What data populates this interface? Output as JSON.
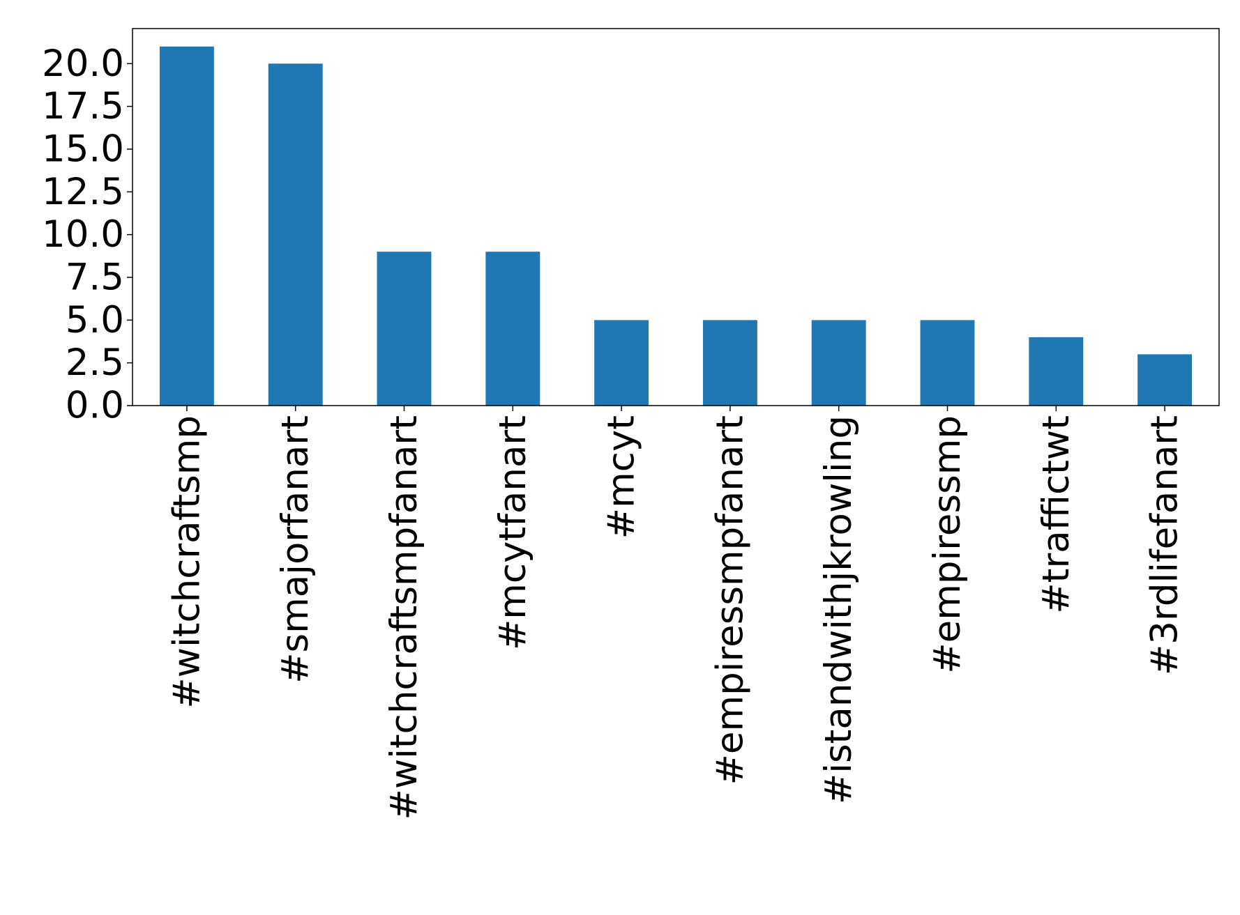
{
  "chart_data": {
    "type": "bar",
    "title": "",
    "xlabel": "",
    "ylabel": "",
    "categories": [
      "#witchcraftsmp",
      "#smajorfanart",
      "#witchcraftsmpfanart",
      "#mcytfanart",
      "#mcyt",
      "#empiressmpfanart",
      "#istandwithjkrowling",
      "#empiressmp",
      "#traffictwt",
      "#3rdlifefanart"
    ],
    "values": [
      21,
      20,
      9,
      9,
      5,
      5,
      5,
      5,
      4,
      3
    ],
    "yticks": [
      "0.0",
      "2.5",
      "5.0",
      "7.5",
      "10.0",
      "12.5",
      "15.0",
      "17.5",
      "20.0"
    ],
    "ytick_values": [
      0,
      2.5,
      5,
      7.5,
      10,
      12.5,
      15,
      17.5,
      20
    ],
    "ylim": [
      0,
      22.05
    ],
    "grid": false,
    "legend": "none",
    "bar_color": "#1f77b4"
  }
}
